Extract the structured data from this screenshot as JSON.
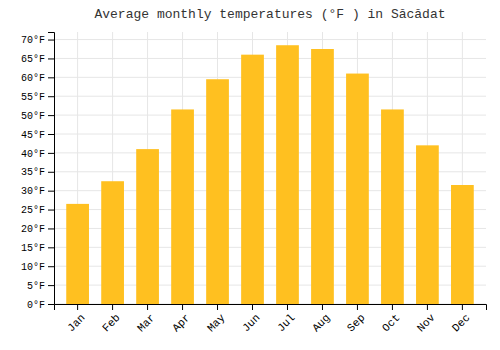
{
  "chart_data": {
    "type": "bar",
    "title": "Average monthly temperatures (°F ) in Săcădat",
    "categories": [
      "Jan",
      "Feb",
      "Mar",
      "Apr",
      "May",
      "Jun",
      "Jul",
      "Aug",
      "Sep",
      "Oct",
      "Nov",
      "Dec"
    ],
    "values": [
      26.5,
      32.5,
      41.0,
      51.5,
      59.5,
      66.0,
      68.5,
      67.5,
      61.0,
      51.5,
      42.0,
      31.5
    ],
    "color": "#FFC020",
    "ylim": [
      0,
      72
    ],
    "yticks": [
      {
        "value": 0,
        "label": "0°F"
      },
      {
        "value": 5,
        "label": "5°F"
      },
      {
        "value": 10,
        "label": "10°F"
      },
      {
        "value": 15,
        "label": "15°F"
      },
      {
        "value": 20,
        "label": "20°F"
      },
      {
        "value": 25,
        "label": "25°F"
      },
      {
        "value": 30,
        "label": "30°F"
      },
      {
        "value": 35,
        "label": "35°F"
      },
      {
        "value": 40,
        "label": "40°F"
      },
      {
        "value": 45,
        "label": "45°F"
      },
      {
        "value": 50,
        "label": "50°F"
      },
      {
        "value": 55,
        "label": "55°F"
      },
      {
        "value": 60,
        "label": "60°F"
      },
      {
        "value": 65,
        "label": "65°F"
      },
      {
        "value": 70,
        "label": "70°F"
      }
    ],
    "grid": true
  }
}
